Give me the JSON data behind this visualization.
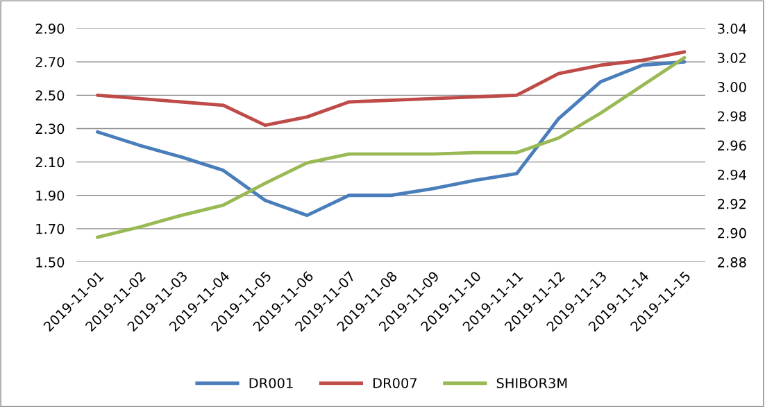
{
  "chart_data": {
    "type": "line",
    "categories": [
      "2019-11-01",
      "2019-11-02",
      "2019-11-03",
      "2019-11-04",
      "2019-11-05",
      "2019-11-06",
      "2019-11-07",
      "2019-11-08",
      "2019-11-09",
      "2019-11-10",
      "2019-11-11",
      "2019-11-12",
      "2019-11-13",
      "2019-11-14",
      "2019-11-15"
    ],
    "series": [
      {
        "name": "DR001",
        "color": "#4a7ebb",
        "values": [
          2.28,
          2.2,
          2.13,
          2.05,
          1.87,
          1.78,
          1.9,
          1.9,
          1.94,
          1.99,
          2.03,
          2.36,
          2.58,
          2.68,
          2.7
        ]
      },
      {
        "name": "DR007",
        "color": "#be4b48",
        "values": [
          2.5,
          2.48,
          2.46,
          2.44,
          2.32,
          2.37,
          2.46,
          2.47,
          2.48,
          2.49,
          2.5,
          2.63,
          2.68,
          2.71,
          2.76
        ]
      },
      {
        "name": "SHIBOR3M",
        "color": "#98b954",
        "axis": "y2",
        "values": [
          2.897,
          2.904,
          2.912,
          2.919,
          2.934,
          2.948,
          2.954,
          2.954,
          2.954,
          2.955,
          2.955,
          2.965,
          2.982,
          3.001,
          3.02
        ]
      }
    ],
    "ylim": [
      1.5,
      2.9
    ],
    "yticks": [
      {
        "value": 1.5,
        "label": "1.50"
      },
      {
        "value": 1.7,
        "label": "1.70"
      },
      {
        "value": 1.9,
        "label": "1.90"
      },
      {
        "value": 2.1,
        "label": "2.10"
      },
      {
        "value": 2.3,
        "label": "2.30"
      },
      {
        "value": 2.5,
        "label": "2.50"
      },
      {
        "value": 2.7,
        "label": "2.70"
      },
      {
        "value": 2.9,
        "label": "2.90"
      }
    ],
    "y2lim": [
      2.88,
      3.04
    ],
    "y2ticks": [
      {
        "value": 2.88,
        "label": "2.88"
      },
      {
        "value": 2.9,
        "label": "2.90"
      },
      {
        "value": 2.92,
        "label": "2.92"
      },
      {
        "value": 2.94,
        "label": "2.94"
      },
      {
        "value": 2.96,
        "label": "2.96"
      },
      {
        "value": 2.98,
        "label": "2.98"
      },
      {
        "value": 3.0,
        "label": "3.00"
      },
      {
        "value": 3.02,
        "label": "3.02"
      },
      {
        "value": 3.04,
        "label": "3.04"
      }
    ],
    "grid": "y",
    "legend": "bottom",
    "marker": "none",
    "line_style": "solid"
  }
}
